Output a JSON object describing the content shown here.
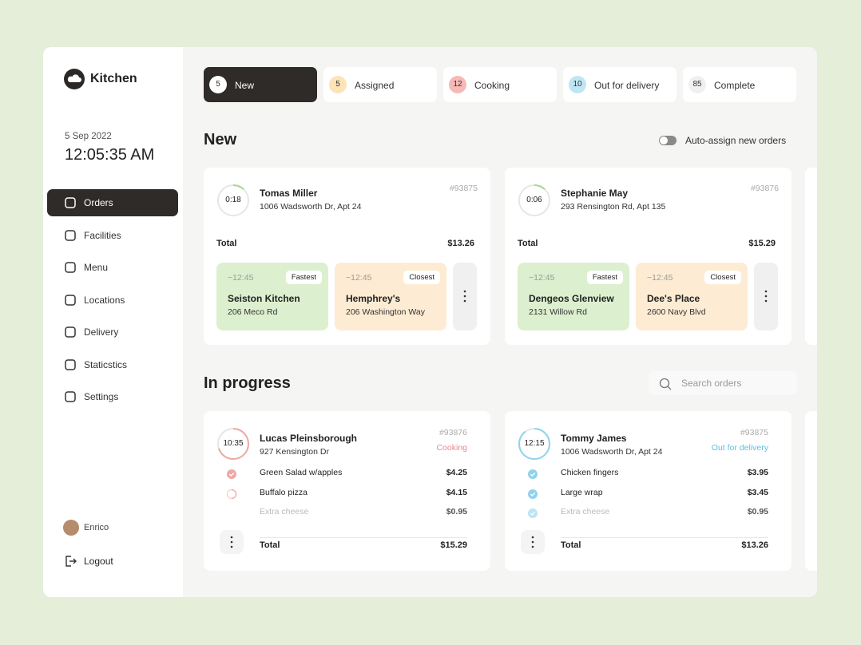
{
  "sidebar": {
    "brand": "Kitchen",
    "date": "5 Sep 2022",
    "time": "12:05:35 AM",
    "nav": [
      "Orders",
      "Facilities",
      "Menu",
      "Locations",
      "Delivery",
      "Staticstics",
      "Settings"
    ],
    "user": "Enrico",
    "logout": "Logout"
  },
  "tabs": [
    {
      "count": 5,
      "label": "New"
    },
    {
      "count": 5,
      "label": "Assigned"
    },
    {
      "count": 12,
      "label": "Cooking"
    },
    {
      "count": 10,
      "label": "Out for delivery"
    },
    {
      "count": 85,
      "label": "Complete"
    }
  ],
  "new_section": {
    "title": "New",
    "toggle": "Auto-assign new orders",
    "orders": [
      {
        "timer": "0:18",
        "name": "Tomas Miller",
        "address": "1006 Wadsworth Dr, Apt 24",
        "id": "#93875",
        "total_label": "Total",
        "total": "$13.26",
        "options": [
          {
            "eta": "~12:45",
            "tag": "Fastest",
            "name": "Seiston Kitchen",
            "address": "206 Meco Rd"
          },
          {
            "eta": "~12:45",
            "tag": "Closest",
            "name": "Hemphrey's",
            "address": "206 Washington Way"
          }
        ]
      },
      {
        "timer": "0:06",
        "name": "Stephanie May",
        "address": "293 Rensington Rd, Apt 135",
        "id": "#93876",
        "total_label": "Total",
        "total": "$15.29",
        "options": [
          {
            "eta": "~12:45",
            "tag": "Fastest",
            "name": "Dengeos Glenview",
            "address": "2131 Willow Rd"
          },
          {
            "eta": "~12:45",
            "tag": "Closest",
            "name": "Dee's Place",
            "address": "2600 Navy Blvd"
          }
        ]
      }
    ]
  },
  "progress_section": {
    "title": "In progress",
    "search": "Search orders",
    "orders": [
      {
        "timer": "10:35",
        "name": "Lucas Pleinsborough",
        "address": "927 Kensington Dr",
        "id": "#93876",
        "status": "Cooking",
        "items": [
          {
            "name": "Green Salad w/apples",
            "price": "$4.25"
          },
          {
            "name": "Buffalo pizza",
            "price": "$4.15"
          },
          {
            "name": "Extra cheese",
            "price": "$0.95"
          }
        ],
        "total_label": "Total",
        "total": "$15.29"
      },
      {
        "timer": "12:15",
        "name": "Tommy James",
        "address": "1006 Wadsworth Dr, Apt 24",
        "id": "#93875",
        "status": "Out for delivery",
        "items": [
          {
            "name": "Chicken fingers",
            "price": "$3.95"
          },
          {
            "name": "Large wrap",
            "price": "$3.45"
          },
          {
            "name": "Extra cheese",
            "price": "$0.95"
          }
        ],
        "total_label": "Total",
        "total": "$13.26"
      }
    ]
  }
}
